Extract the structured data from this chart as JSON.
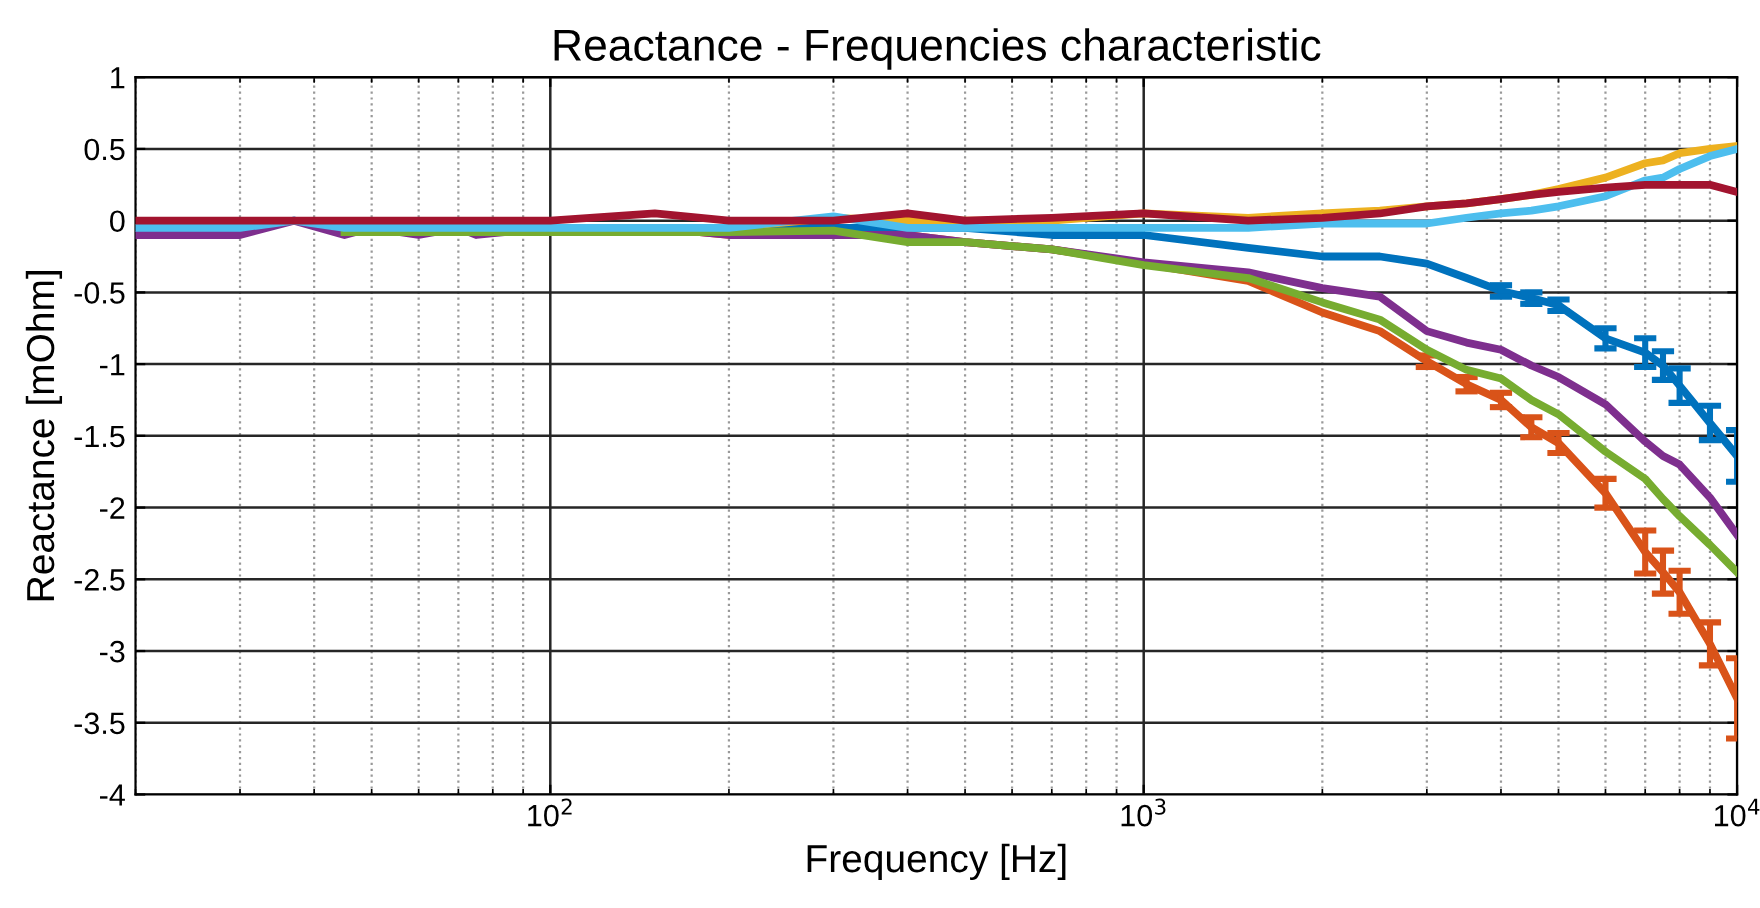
{
  "chart_data": {
    "type": "line",
    "title": "Reactance - Frequencies characteristic",
    "xlabel": "Frequency [Hz]",
    "ylabel": "Reactance [mOhm]",
    "log": "x",
    "x": [
      20,
      25,
      30,
      37,
      45,
      50,
      60,
      70,
      75,
      100,
      150,
      200,
      300,
      400,
      500,
      700,
      1000,
      1500,
      2000,
      2500,
      3000,
      3500,
      4000,
      4500,
      5000,
      6000,
      7000,
      7500,
      8000,
      9000,
      10000
    ],
    "xlim": [
      20,
      10000
    ],
    "xticks": [
      {
        "value": 100,
        "label": "10$^{2}$"
      },
      {
        "value": 1000,
        "label": "10$^{3}$"
      },
      {
        "value": 10000,
        "label": "10$^{4}$"
      }
    ],
    "ylim": [
      -4,
      1
    ],
    "yticks": [
      -4,
      -3.5,
      -3,
      -2.5,
      -2,
      -1.5,
      -1,
      -0.5,
      0,
      0.5,
      1
    ],
    "grid": true,
    "line_style": "solid",
    "marker": "none",
    "series": [
      {
        "color": "#0072bd",
        "values": [
          -0.05,
          -0.05,
          -0.05,
          0,
          -0.05,
          -0.05,
          -0.05,
          -0.05,
          -0.05,
          -0.05,
          -0.05,
          -0.05,
          -0.05,
          -0.05,
          -0.05,
          -0.1,
          -0.1,
          -0.19,
          -0.25,
          -0.25,
          -0.3,
          -0.4,
          -0.49,
          -0.54,
          -0.59,
          -0.82,
          -0.92,
          -1.01,
          -1.15,
          -1.41,
          -1.64
        ],
        "errors": [
          null,
          null,
          null,
          null,
          null,
          null,
          null,
          null,
          null,
          null,
          null,
          null,
          null,
          null,
          null,
          null,
          null,
          null,
          null,
          null,
          null,
          null,
          0.04,
          0.04,
          0.04,
          0.07,
          0.1,
          0.1,
          0.12,
          0.12,
          0.18
        ]
      },
      {
        "color": "#d95319",
        "values": [
          null,
          null,
          null,
          null,
          null,
          null,
          null,
          null,
          -0.05,
          -0.05,
          -0.05,
          -0.1,
          -0.1,
          -0.1,
          -0.15,
          -0.2,
          -0.3,
          -0.42,
          -0.64,
          -0.77,
          -0.98,
          -1.14,
          -1.25,
          -1.44,
          -1.55,
          -1.9,
          -2.31,
          -2.45,
          -2.59,
          -2.95,
          -3.33
        ],
        "errors": [
          null,
          null,
          null,
          null,
          null,
          null,
          null,
          null,
          null,
          null,
          null,
          null,
          null,
          null,
          null,
          null,
          null,
          null,
          null,
          null,
          0.04,
          0.05,
          0.05,
          0.07,
          0.07,
          0.1,
          0.15,
          0.15,
          0.15,
          0.15,
          0.28
        ]
      },
      {
        "color": "#edb120",
        "values": [
          null,
          null,
          null,
          null,
          null,
          null,
          null,
          null,
          null,
          null,
          -0.05,
          -0.05,
          0.02,
          0,
          0,
          0,
          0.05,
          0.02,
          0.05,
          0.07,
          0.1,
          0.12,
          0.15,
          0.18,
          0.22,
          0.3,
          0.4,
          0.42,
          0.47,
          0.5,
          0.52
        ]
      },
      {
        "color": "#7e2f8e",
        "values": [
          -0.1,
          -0.1,
          -0.1,
          0,
          -0.1,
          -0.05,
          -0.1,
          -0.05,
          -0.1,
          -0.05,
          -0.05,
          -0.1,
          -0.1,
          -0.1,
          -0.15,
          -0.2,
          -0.29,
          -0.36,
          -0.47,
          -0.53,
          -0.77,
          -0.85,
          -0.9,
          -1.01,
          -1.09,
          -1.28,
          -1.54,
          -1.64,
          -1.7,
          -1.93,
          -2.19
        ]
      },
      {
        "color": "#77ac30",
        "values": [
          null,
          null,
          null,
          null,
          -0.08,
          -0.08,
          -0.08,
          -0.08,
          -0.08,
          -0.08,
          -0.08,
          -0.08,
          -0.07,
          -0.15,
          -0.15,
          -0.2,
          -0.31,
          -0.4,
          -0.57,
          -0.69,
          -0.9,
          -1.04,
          -1.1,
          -1.25,
          -1.35,
          -1.61,
          -1.8,
          -1.94,
          -2.06,
          -2.26,
          -2.45
        ]
      },
      {
        "color": "#4dbeee",
        "values": [
          -0.05,
          -0.05,
          -0.05,
          0,
          -0.05,
          -0.05,
          -0.05,
          -0.05,
          -0.05,
          -0.05,
          -0.05,
          -0.05,
          0.03,
          -0.05,
          -0.05,
          -0.05,
          -0.05,
          -0.05,
          -0.02,
          -0.02,
          -0.02,
          0.02,
          0.05,
          0.07,
          0.1,
          0.17,
          0.28,
          0.3,
          0.36,
          0.45,
          0.5
        ]
      },
      {
        "color": "#a2142f",
        "values": [
          0,
          0,
          0,
          0,
          0,
          0,
          0,
          0,
          0,
          0,
          0.05,
          0,
          0,
          0.05,
          0,
          0.02,
          0.05,
          0,
          0.02,
          0.05,
          0.1,
          0.12,
          0.15,
          0.18,
          0.2,
          0.23,
          0.25,
          0.25,
          0.25,
          0.25,
          0.2
        ]
      }
    ]
  }
}
